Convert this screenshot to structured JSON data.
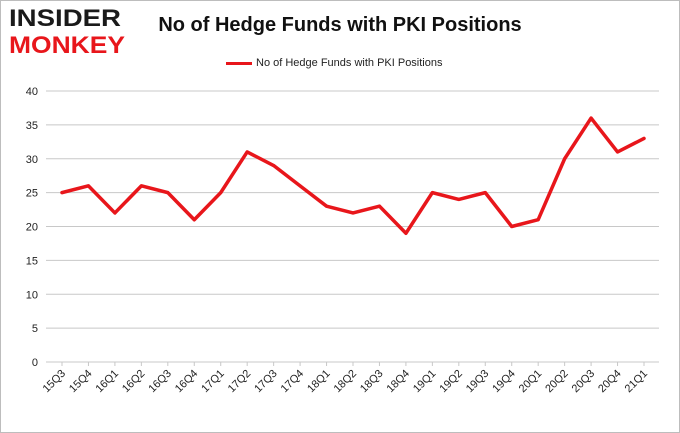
{
  "brand": {
    "line1": "INSIDER",
    "line2": "MONKEY",
    "color_dark": "#1a1a1a",
    "color_accent": "#e8161b"
  },
  "chart_data": {
    "type": "line",
    "title": "No of Hedge Funds with PKI Positions",
    "xlabel": "",
    "ylabel": "",
    "ylim": [
      0,
      40
    ],
    "yticks": [
      0,
      5,
      10,
      15,
      20,
      25,
      30,
      35,
      40
    ],
    "grid": true,
    "legend_position": "top-center",
    "categories": [
      "15Q3",
      "15Q4",
      "16Q1",
      "16Q2",
      "16Q3",
      "16Q4",
      "17Q1",
      "17Q2",
      "17Q3",
      "17Q4",
      "18Q1",
      "18Q2",
      "18Q3",
      "18Q4",
      "19Q1",
      "19Q2",
      "19Q3",
      "19Q4",
      "20Q1",
      "20Q2",
      "20Q3",
      "20Q4",
      "21Q1"
    ],
    "series": [
      {
        "name": "No of Hedge Funds with PKI Positions",
        "color": "#e8161b",
        "values": [
          25,
          26,
          22,
          26,
          25,
          21,
          25,
          31,
          29,
          26,
          23,
          22,
          23,
          19,
          25,
          24,
          25,
          20,
          21,
          30,
          36,
          31,
          33
        ]
      }
    ]
  }
}
